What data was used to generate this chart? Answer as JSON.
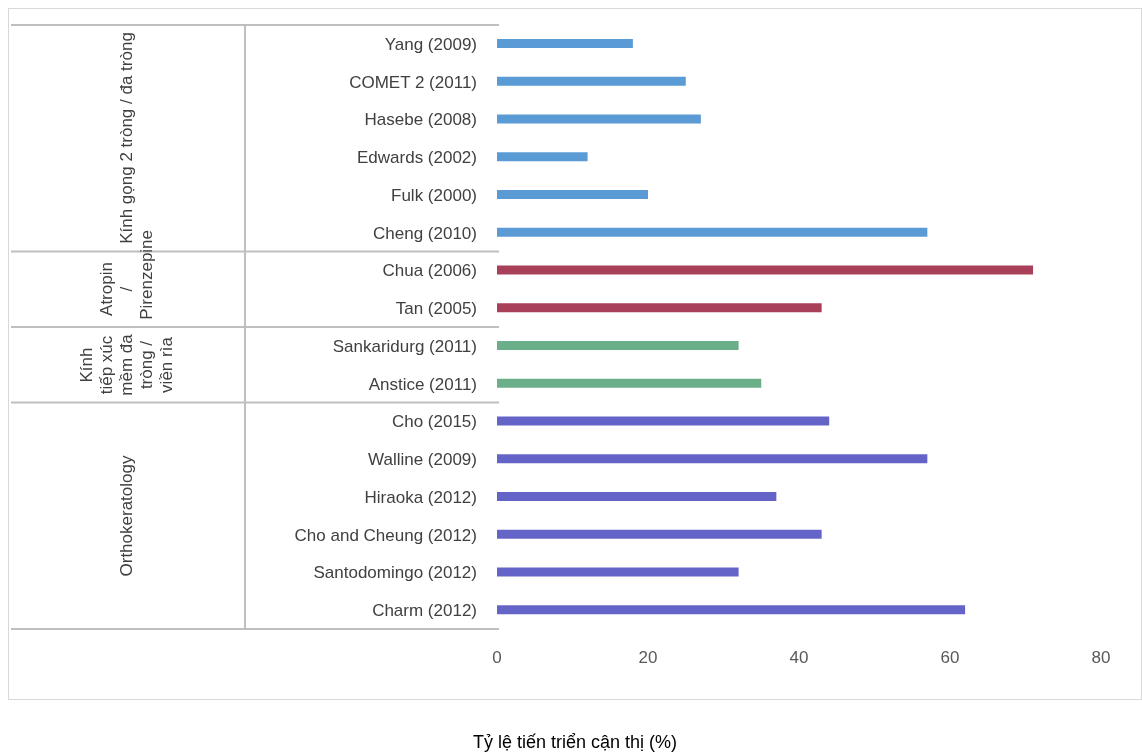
{
  "chart_data": {
    "type": "bar",
    "orientation": "horizontal",
    "xlabel": "Tỷ lệ tiến triển cận thị (%)",
    "categories": [
      "Yang (2009)",
      "COMET 2 (2011)",
      "Hasebe (2008)",
      "Edwards (2002)",
      "Fulk (2000)",
      "Cheng (2010)",
      "Chua (2006)",
      "Tan (2005)",
      "Sankaridurg (2011)",
      "Anstice (2011)",
      "Cho (2015)",
      "Walline (2009)",
      "Hiraoka (2012)",
      "Cho and Cheung (2012)",
      "Santodomingo (2012)",
      "Charm (2012)"
    ],
    "series": [
      {
        "color": "#5b9bd5",
        "values": [
          18,
          25,
          27,
          12,
          20,
          57,
          null,
          null,
          null,
          null,
          null,
          null,
          null,
          null,
          null,
          null
        ]
      },
      {
        "color": "#a9405a",
        "values": [
          null,
          null,
          null,
          null,
          null,
          null,
          71,
          43,
          null,
          null,
          null,
          null,
          null,
          null,
          null,
          null
        ]
      },
      {
        "color": "#6aaf8a",
        "values": [
          null,
          null,
          null,
          null,
          null,
          null,
          null,
          null,
          32,
          35,
          null,
          null,
          null,
          null,
          null,
          null
        ]
      },
      {
        "color": "#6464c8",
        "values": [
          null,
          null,
          null,
          null,
          null,
          null,
          null,
          null,
          null,
          null,
          44,
          57,
          37,
          43,
          32,
          62
        ]
      }
    ],
    "annotations": [
      "Kính gọng 2 tròng / đa tròng",
      "Atropin / Pirenzepine",
      "Kính tiếp xúc mềm đa tròng / viền rìa",
      "Orthokeratology"
    ],
    "xlim": [
      0,
      80
    ],
    "xticks": [
      0,
      20,
      40,
      60,
      80
    ],
    "grid": false,
    "legend": false
  }
}
